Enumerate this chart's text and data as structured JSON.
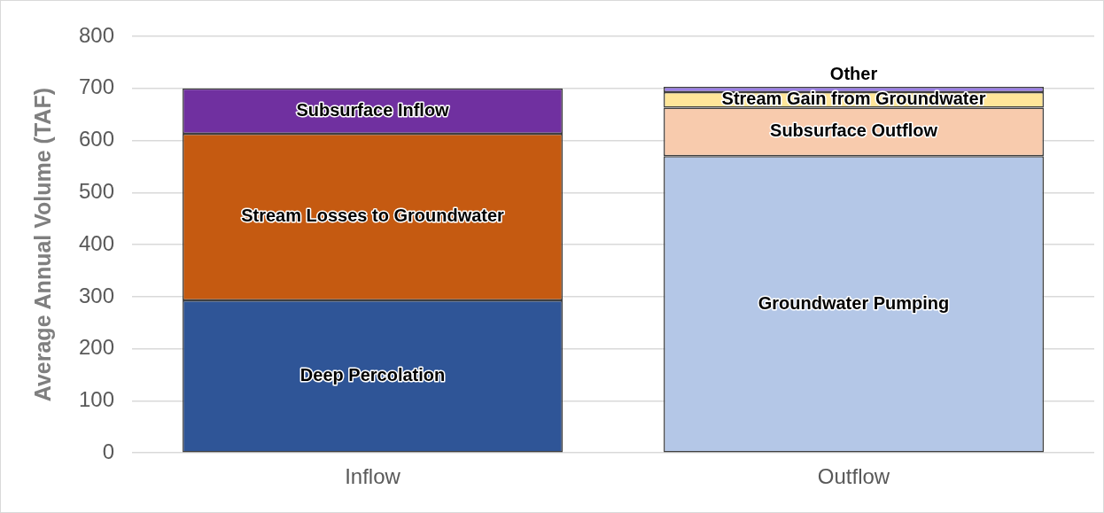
{
  "chart_data": {
    "type": "bar",
    "stacked": true,
    "ylabel": "Average Annual Volume (TAF)",
    "categories": [
      "Inflow",
      "Outflow"
    ],
    "ylim": [
      0,
      800
    ],
    "yticks": [
      0,
      100,
      200,
      300,
      400,
      500,
      600,
      700,
      800
    ],
    "grid": "y",
    "legend": false,
    "series": [
      {
        "name": "Deep Percolation",
        "color": "#2f5597",
        "values": [
          293,
          null
        ]
      },
      {
        "name": "Stream Losses to Groundwater",
        "color": "#c55a11",
        "values": [
          320,
          null
        ]
      },
      {
        "name": "Subsurface Inflow",
        "color": "#7030a0",
        "values": [
          87,
          null
        ]
      },
      {
        "name": "Groundwater Pumping",
        "color": "#b4c7e7",
        "values": [
          null,
          570
        ]
      },
      {
        "name": "Subsurface Outflow",
        "color": "#f8cbad",
        "values": [
          null,
          93
        ]
      },
      {
        "name": "Stream Gain from Groundwater",
        "color": "#ffe699",
        "values": [
          null,
          30
        ]
      },
      {
        "name": "Other",
        "color": "#9b7fe8",
        "values": [
          null,
          10
        ]
      }
    ]
  }
}
